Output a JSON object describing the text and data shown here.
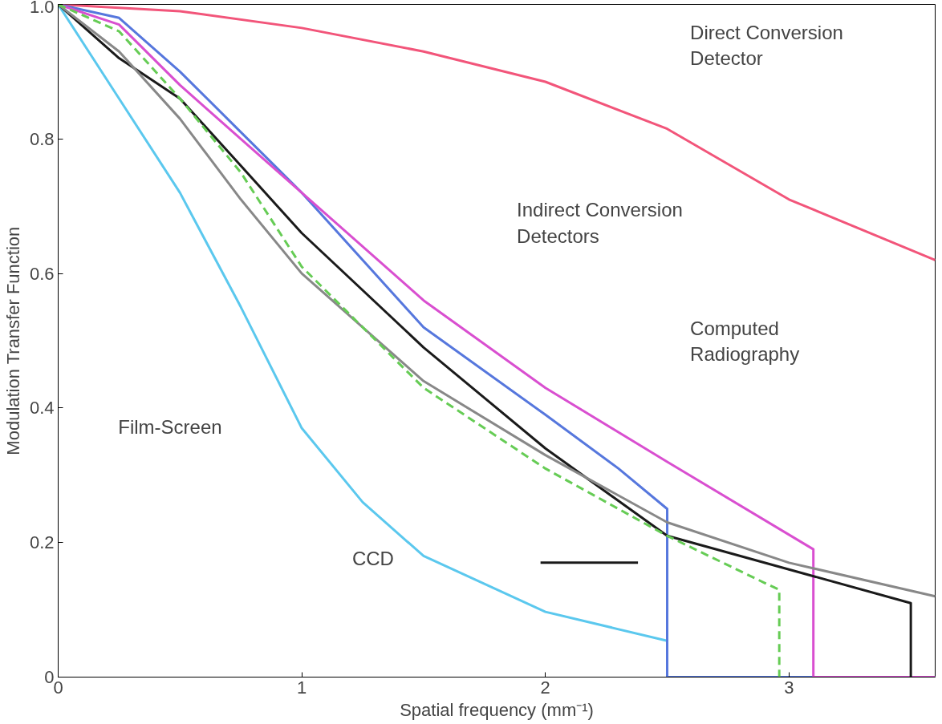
{
  "chart_data": {
    "type": "line",
    "xlabel": "Spatial frequency (mm⁻¹)",
    "ylabel": "Modulation Transfer Function",
    "xlim": [
      0,
      3.6
    ],
    "ylim": [
      0,
      1
    ],
    "xticks": [
      0,
      1,
      2,
      3
    ],
    "yticks": [
      0,
      0.2,
      0.4,
      0.6,
      0.8,
      {
        "value": 1,
        "label": "1.0"
      }
    ],
    "grid": false,
    "line_style": "solid",
    "series": [
      {
        "color": "#f2557a",
        "x": [
          0,
          0.5,
          1,
          1.5,
          2,
          2.5,
          3,
          3.6
        ],
        "values": [
          1,
          0.99,
          0.965,
          0.93,
          0.885,
          0.815,
          0.71,
          0.62
        ]
      },
      {
        "color": "#5bc8ee",
        "x": [
          0,
          0.25,
          0.5,
          0.75,
          1,
          1.25,
          1.5,
          2,
          2.5
        ],
        "values": [
          1,
          0.86,
          0.72,
          0.55,
          0.37,
          0.26,
          0.18,
          0.097,
          0.054
        ]
      },
      {
        "color": "#5677dd",
        "x": [
          0,
          0.25,
          0.5,
          0.75,
          1,
          1.5,
          2,
          2.3,
          2.5,
          2.5,
          3.6
        ],
        "values": [
          1,
          0.98,
          0.9,
          0.81,
          0.72,
          0.52,
          0.39,
          0.31,
          0.25,
          0,
          0
        ]
      },
      {
        "color": "#d94fd0",
        "x": [
          0,
          0.25,
          0.5,
          0.75,
          1,
          1.5,
          2,
          2.5,
          3.1,
          3.1,
          3.6
        ],
        "values": [
          1,
          0.97,
          0.88,
          0.8,
          0.72,
          0.56,
          0.43,
          0.32,
          0.19,
          0,
          0
        ]
      },
      {
        "color": "#1a1a1a",
        "x": [
          0,
          0.25,
          0.5,
          0.75,
          1,
          1.5,
          2,
          2.5,
          3,
          3.5,
          3.5
        ],
        "values": [
          1,
          0.92,
          0.86,
          0.76,
          0.66,
          0.49,
          0.34,
          0.21,
          0.16,
          0.11,
          0
        ]
      },
      {
        "color": "#888888",
        "x": [
          0,
          0.25,
          0.5,
          0.75,
          1,
          1.5,
          2,
          2.5,
          3,
          3.6
        ],
        "values": [
          1,
          0.93,
          0.83,
          0.71,
          0.6,
          0.44,
          0.33,
          0.23,
          0.17,
          0.12
        ]
      },
      {
        "color": "#66cc55",
        "line_style": "dashed",
        "x": [
          0,
          0.25,
          0.5,
          0.75,
          1,
          1.5,
          2,
          2.5,
          2.9,
          2.96,
          2.96
        ],
        "values": [
          1,
          0.96,
          0.86,
          0.75,
          0.61,
          0.43,
          0.31,
          0.21,
          0.14,
          0.13,
          0
        ]
      },
      {
        "color": "#1a1a1a",
        "x": [
          1.98,
          2.38
        ],
        "values": [
          0.17,
          0.17
        ]
      }
    ],
    "annotations": [
      "Direct Conversion\nDetector",
      "Indirect Conversion\nDetectors",
      "Computed\nRadiography",
      "Film-Screen",
      "CCD"
    ]
  }
}
